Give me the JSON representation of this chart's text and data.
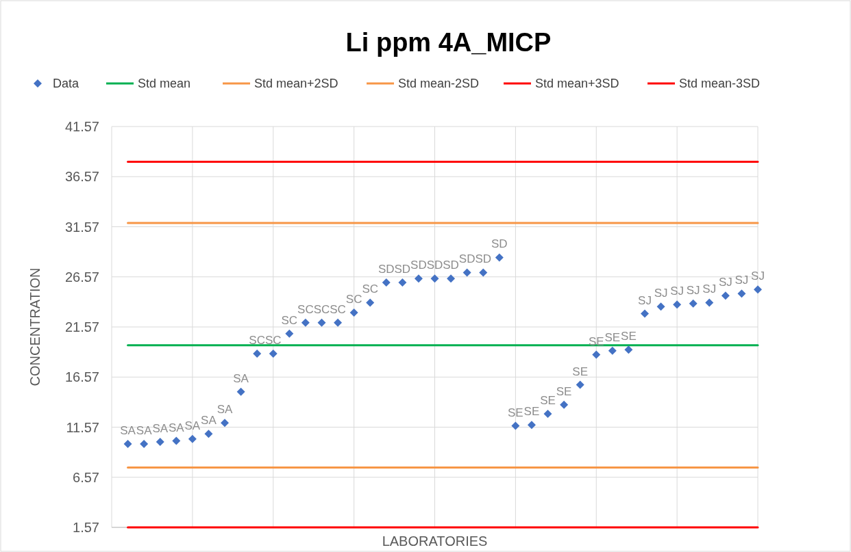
{
  "chart_data": {
    "type": "scatter",
    "title": "Li ppm 4A_MICP",
    "xlabel": "LABORATORIES",
    "ylabel": "CONCENTRATION",
    "categories": [
      null,
      null,
      null,
      null,
      null,
      null,
      null,
      null,
      null,
      null,
      null,
      null,
      null,
      null,
      null,
      null,
      null,
      null,
      null,
      null,
      null,
      null,
      null,
      null,
      null,
      null,
      null,
      null,
      null,
      null,
      null,
      null,
      null,
      null,
      null,
      null,
      null,
      null,
      null,
      null
    ],
    "ylim": [
      1.57,
      41.57
    ],
    "yticks": [
      1.57,
      6.57,
      11.57,
      16.57,
      21.57,
      26.57,
      31.57,
      36.57,
      41.57
    ],
    "grid": true,
    "legend": "top",
    "series": [
      {
        "name": "Data",
        "marker": "diamond",
        "color": "#4472c4",
        "values": [
          9.9,
          9.9,
          10.1,
          10.2,
          10.4,
          10.9,
          12.0,
          15.1,
          18.9,
          18.9,
          20.9,
          22.0,
          22.0,
          22.0,
          23.0,
          24.0,
          26.0,
          26.0,
          26.4,
          26.4,
          26.4,
          27.0,
          27.0,
          28.5,
          11.7,
          11.8,
          12.9,
          13.8,
          15.8,
          18.8,
          19.2,
          19.3,
          22.9,
          23.6,
          23.8,
          23.9,
          24.0,
          24.7,
          24.9,
          25.3
        ],
        "value_labels": [
          "SA",
          "SA",
          "SA",
          "SA",
          "SA",
          "SA",
          "SA",
          "SA",
          "SC",
          "SC",
          "SC",
          "SC",
          "SC",
          "SC",
          "SC",
          "SC",
          "SD",
          "SD",
          "SD",
          "SD",
          "SD",
          "SD",
          "SD",
          "SD",
          "SE",
          "SE",
          "SE",
          "SE",
          "SE",
          "SE",
          "SE",
          "SE",
          "SJ",
          "SJ",
          "SJ",
          "SJ",
          "SJ",
          "SJ",
          "SJ",
          "SJ"
        ]
      },
      {
        "name": "Std mean",
        "type": "line",
        "color": "#00b050",
        "values": [
          19.75,
          19.75,
          19.75,
          19.75,
          19.75,
          19.75,
          19.75,
          19.75,
          19.75,
          19.75,
          19.75,
          19.75,
          19.75,
          19.75,
          19.75,
          19.75,
          19.75,
          19.75,
          19.75,
          19.75,
          19.75,
          19.75,
          19.75,
          19.75,
          19.75,
          19.75,
          19.75,
          19.75,
          19.75,
          19.75,
          19.75,
          19.75,
          19.75,
          19.75,
          19.75,
          19.75,
          19.75,
          19.75,
          19.75,
          19.75
        ]
      },
      {
        "name": "Std mean+2SD",
        "type": "line",
        "color": "#f79646",
        "values": [
          31.95,
          31.95,
          31.95,
          31.95,
          31.95,
          31.95,
          31.95,
          31.95,
          31.95,
          31.95,
          31.95,
          31.95,
          31.95,
          31.95,
          31.95,
          31.95,
          31.95,
          31.95,
          31.95,
          31.95,
          31.95,
          31.95,
          31.95,
          31.95,
          31.95,
          31.95,
          31.95,
          31.95,
          31.95,
          31.95,
          31.95,
          31.95,
          31.95,
          31.95,
          31.95,
          31.95,
          31.95,
          31.95,
          31.95,
          31.95
        ]
      },
      {
        "name": "Std mean-2SD",
        "type": "line",
        "color": "#f79646",
        "values": [
          7.55,
          7.55,
          7.55,
          7.55,
          7.55,
          7.55,
          7.55,
          7.55,
          7.55,
          7.55,
          7.55,
          7.55,
          7.55,
          7.55,
          7.55,
          7.55,
          7.55,
          7.55,
          7.55,
          7.55,
          7.55,
          7.55,
          7.55,
          7.55,
          7.55,
          7.55,
          7.55,
          7.55,
          7.55,
          7.55,
          7.55,
          7.55,
          7.55,
          7.55,
          7.55,
          7.55,
          7.55,
          7.55,
          7.55,
          7.55
        ]
      },
      {
        "name": "Std mean+3SD",
        "type": "line",
        "color": "#ff0000",
        "values": [
          38.05,
          38.05,
          38.05,
          38.05,
          38.05,
          38.05,
          38.05,
          38.05,
          38.05,
          38.05,
          38.05,
          38.05,
          38.05,
          38.05,
          38.05,
          38.05,
          38.05,
          38.05,
          38.05,
          38.05,
          38.05,
          38.05,
          38.05,
          38.05,
          38.05,
          38.05,
          38.05,
          38.05,
          38.05,
          38.05,
          38.05,
          38.05,
          38.05,
          38.05,
          38.05,
          38.05,
          38.05,
          38.05,
          38.05,
          38.05
        ]
      },
      {
        "name": "Std mean-3SD",
        "type": "line",
        "color": "#ff0000",
        "values": [
          1.57,
          1.57,
          1.57,
          1.57,
          1.57,
          1.57,
          1.57,
          1.57,
          1.57,
          1.57,
          1.57,
          1.57,
          1.57,
          1.57,
          1.57,
          1.57,
          1.57,
          1.57,
          1.57,
          1.57,
          1.57,
          1.57,
          1.57,
          1.57,
          1.57,
          1.57,
          1.57,
          1.57,
          1.57,
          1.57,
          1.57,
          1.57,
          1.57,
          1.57,
          1.57,
          1.57,
          1.57,
          1.57,
          1.57,
          1.57
        ]
      }
    ]
  }
}
